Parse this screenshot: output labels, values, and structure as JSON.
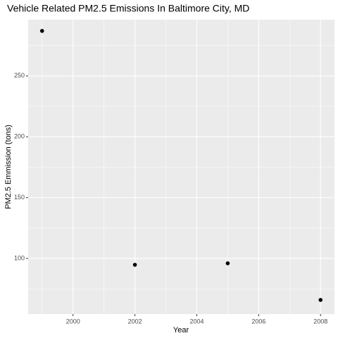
{
  "chart_data": {
    "type": "scatter",
    "title": "Vehicle Related PM2.5 Emissions In Baltimore City, MD",
    "xlabel": "Year",
    "ylabel": "PM2.5 Emmission (tons)",
    "x": [
      1999,
      2002,
      2005,
      2008
    ],
    "values": [
      287,
      94.8,
      96,
      65.9
    ],
    "color": "#000000",
    "xlim": [
      1998.55,
      2008.45
    ],
    "xticks": [
      2000,
      2002,
      2004,
      2006,
      2008
    ],
    "ylim": [
      54.3,
      296.2
    ],
    "yticks": [
      100,
      150,
      200,
      250
    ],
    "grid": true
  }
}
